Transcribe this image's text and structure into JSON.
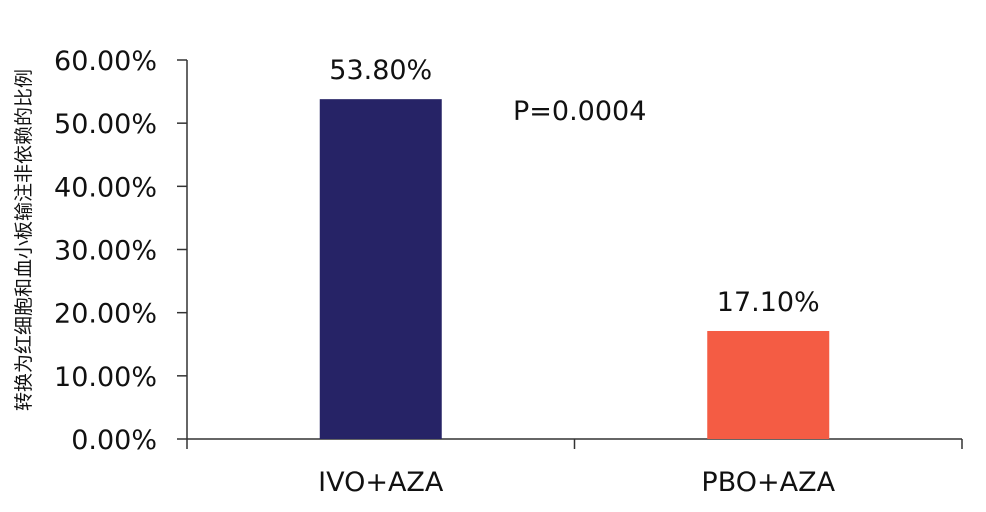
{
  "chart_data": {
    "type": "bar",
    "categories": [
      "IVO+AZA",
      "PBO+AZA"
    ],
    "values": [
      53.8,
      17.1
    ],
    "data_labels": [
      "53.80%",
      "17.10%"
    ],
    "colors": [
      "#262366",
      "#f45c44"
    ],
    "ylabel": "转换为红细胞和血小板输注非依赖的比例",
    "xlabel": "",
    "ylim": [
      0,
      60
    ],
    "yticks": [
      0,
      10,
      20,
      30,
      40,
      50,
      60
    ],
    "ytick_labels": [
      "0.00%",
      "10.00%",
      "20.00%",
      "30.00%",
      "40.00%",
      "50.00%",
      "60.00%"
    ],
    "annotation": "P=0.0004",
    "grid": false,
    "legend": "none"
  }
}
